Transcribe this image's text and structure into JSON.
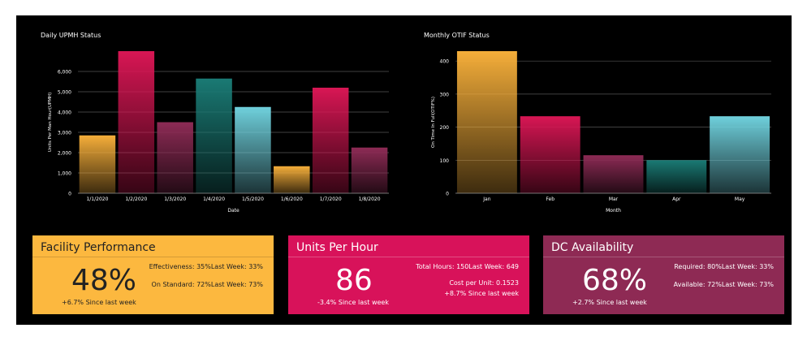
{
  "colors": {
    "orange": "#f5ae3a",
    "crimson": "#d81654",
    "plum": "#8d2b55",
    "teal": "#1a7a74",
    "sky": "#6fd0dc",
    "card_facility": "#fcb83f",
    "card_units": "#d8125a",
    "card_dc": "#8e2a54"
  },
  "chart_data": [
    {
      "type": "bar",
      "title": "Daily UPMH Status",
      "xlabel": "Date",
      "ylabel": "Units Per Man Hour(UPMH)",
      "categories": [
        "1/1/2020",
        "1/2/2020",
        "1/3/2020",
        "1/4/2020",
        "1/5/2020",
        "1/6/2020",
        "1/7/2020",
        "1/8/2020"
      ],
      "values": [
        2850,
        7000,
        3500,
        5650,
        4250,
        1330,
        5200,
        2250
      ],
      "bar_colors": [
        "orange",
        "crimson",
        "plum",
        "teal",
        "sky",
        "orange",
        "crimson",
        "plum"
      ],
      "yticks": [
        "0",
        "1,000",
        "2,000",
        "3,000",
        "4,000",
        "5,000",
        "6,000"
      ],
      "ylim": [
        0,
        7000
      ],
      "grid": true
    },
    {
      "type": "bar",
      "title": "Monthly OTIF Status",
      "xlabel": "Month",
      "ylabel": "On Time In Full(OTIF%)",
      "categories": [
        "Jan",
        "Feb",
        "Mar",
        "Apr",
        "May"
      ],
      "values": [
        430,
        233,
        115,
        100,
        233
      ],
      "bar_colors": [
        "orange",
        "crimson",
        "plum",
        "teal",
        "sky"
      ],
      "yticks": [
        "0",
        "100",
        "200",
        "300",
        "400"
      ],
      "ylim": [
        0,
        430
      ],
      "grid": true
    }
  ],
  "cards": {
    "facility": {
      "title": "Facility Performance",
      "big": "48%",
      "stat1": "Effectiveness: 35%Last Week: 33%",
      "stat2": "On Standard: 72%Last Week: 73%",
      "change": "+6.7% Since last week"
    },
    "units": {
      "title": "Units Per Hour",
      "big": "86",
      "stat1": "Total Hours: 150Last Week: 649",
      "stat2": "Cost per Unit: 0.1523",
      "stat3": "+8.7% Since last week",
      "change": "-3.4% Since last week"
    },
    "dc": {
      "title": "DC Availability",
      "big": "68%",
      "stat1": "Required: 80%Last Week: 33%",
      "stat2": "Available: 72%Last Week: 73%",
      "change": "+2.7% Since last week"
    }
  }
}
